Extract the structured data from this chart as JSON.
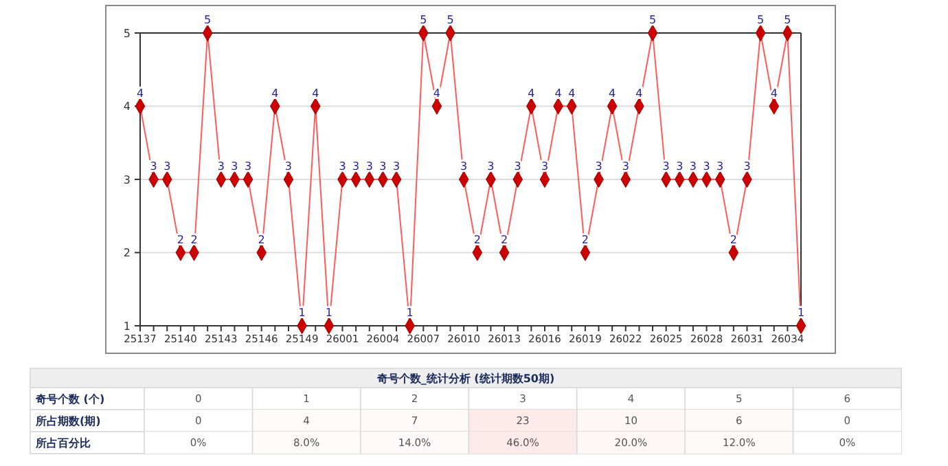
{
  "chart_data": [
    {
      "type": "line",
      "categories": [
        "25137",
        null,
        null,
        "25140",
        null,
        null,
        "25143",
        null,
        null,
        "25146",
        null,
        null,
        "25149",
        null,
        null,
        "26001",
        null,
        null,
        "26004",
        null,
        null,
        "26007",
        null,
        null,
        "26010",
        null,
        null,
        "26013",
        null,
        null,
        "26016",
        null,
        null,
        "26019",
        null,
        null,
        "26022",
        null,
        null,
        "26025",
        null,
        null,
        "26028",
        null,
        null,
        "26031",
        null,
        null,
        "26034",
        null
      ],
      "series": [
        {
          "color": "#ff5a5a",
          "values": [
            4,
            3,
            3,
            2,
            2,
            5,
            3,
            3,
            3,
            2,
            4,
            3,
            1,
            4,
            1,
            3,
            3,
            3,
            3,
            3,
            1,
            5,
            4,
            5,
            3,
            2,
            3,
            2,
            3,
            4,
            3,
            4,
            4,
            2,
            3,
            4,
            3,
            4,
            5,
            3,
            3,
            3,
            3,
            3,
            2,
            3,
            5,
            4,
            5,
            1
          ]
        }
      ],
      "ylim": [
        1,
        5
      ],
      "yticks": [
        1,
        2,
        3,
        4,
        5
      ],
      "grid": "y",
      "marker": "diamond",
      "data_labels": true
    },
    {
      "type": "heatmap",
      "title": "奇号个数_统计分析 (统计期数50期)",
      "xlabel": "奇号个数 (个)",
      "categories": [
        "0",
        "1",
        "2",
        "3",
        "4",
        "5",
        "6"
      ],
      "y_categories": [
        "所占期数(期)",
        "所占百分比"
      ],
      "cells": [
        [
          0,
          4,
          7,
          23,
          10,
          6,
          0
        ],
        [
          0,
          8,
          14,
          46,
          20,
          12,
          0
        ]
      ],
      "cell_labels": [
        [
          "0",
          "4",
          "7",
          "23",
          "10",
          "6",
          "0"
        ],
        [
          "0%",
          "8.0%",
          "14.0%",
          "46.0%",
          "20.0%",
          "12.0%",
          "0%"
        ]
      ]
    }
  ]
}
